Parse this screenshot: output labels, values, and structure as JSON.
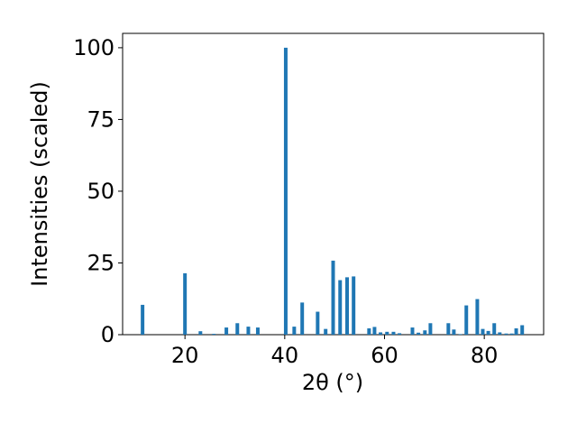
{
  "chart_data": {
    "type": "bar",
    "x_label": "2θ (°)",
    "y_label": "Intensities (scaled)",
    "x": [
      11.5,
      20.0,
      23.1,
      25.8,
      28.3,
      30.5,
      32.7,
      34.6,
      40.2,
      41.9,
      43.5,
      46.6,
      48.2,
      49.7,
      51.1,
      52.5,
      53.8,
      56.9,
      58.0,
      59.2,
      60.5,
      61.8,
      63.0,
      65.6,
      66.8,
      68.1,
      69.2,
      72.8,
      73.9,
      75.2,
      76.4,
      78.6,
      79.7,
      80.8,
      82.0,
      83.1,
      84.4,
      85.5,
      86.4,
      87.6
    ],
    "values": [
      10.4,
      21.4,
      1.2,
      0.3,
      2.5,
      4,
      2.8,
      2.5,
      100,
      2.8,
      11.2,
      8,
      2,
      25.8,
      19,
      20,
      20.3,
      2.2,
      2.7,
      0.8,
      1,
      1,
      0.5,
      2.5,
      0.7,
      1.5,
      4,
      4,
      1.8,
      0.2,
      10.2,
      12.4,
      2,
      1.3,
      4,
      0.8,
      0.4,
      0.4,
      2.2,
      3.3
    ],
    "color": "#1f77b4",
    "xlim": [
      7.5,
      91.9
    ],
    "ylim": [
      0,
      105
    ],
    "xticks": [
      20,
      40,
      60,
      80
    ],
    "yticks": [
      0,
      25,
      50,
      75,
      100
    ]
  }
}
